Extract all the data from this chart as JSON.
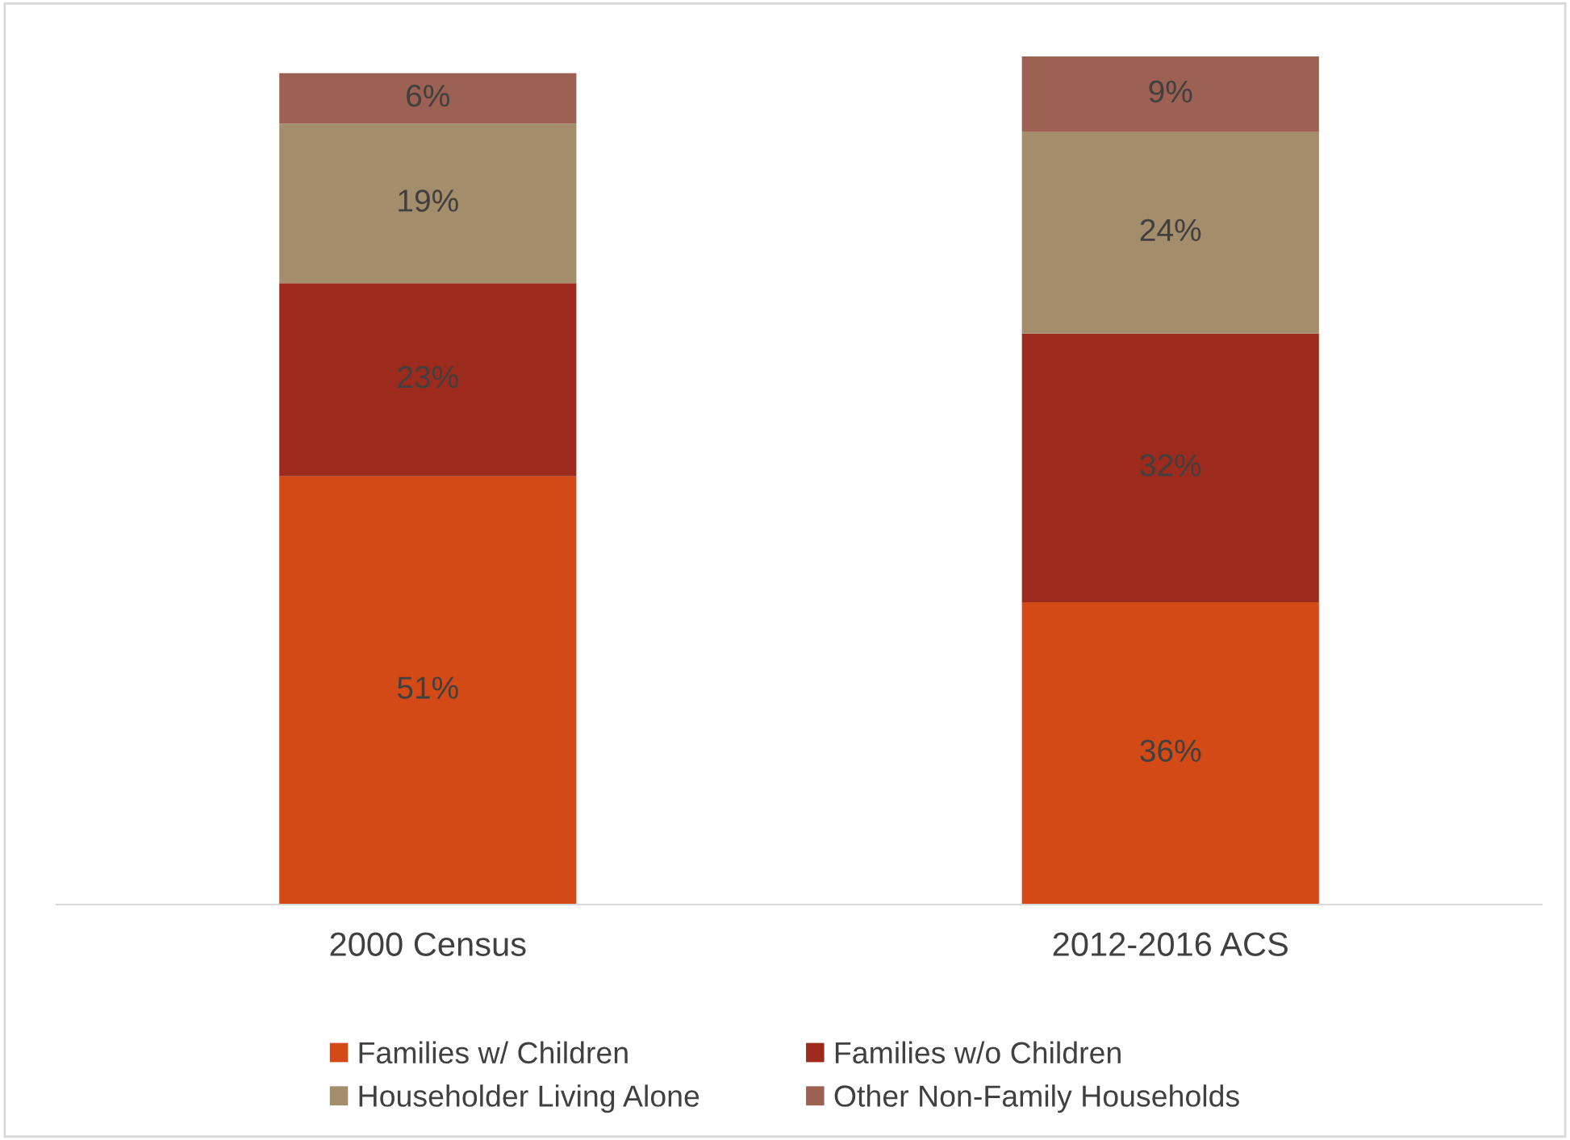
{
  "chart_data": {
    "type": "bar",
    "stacked": true,
    "categories": [
      "2000 Census",
      "2012-2016 ACS"
    ],
    "legend": "bottom",
    "series": [
      {
        "name": "Families w/ Children",
        "color": "#d34a17",
        "values": [
          51,
          36
        ],
        "value_labels": [
          "51%",
          "36%"
        ]
      },
      {
        "name": "Families w/o Children",
        "color": "#9c2b1e",
        "values": [
          23,
          32
        ],
        "value_labels": [
          "23%",
          "32%"
        ]
      },
      {
        "name": "Householder Living Alone",
        "color": "#a38d6b",
        "values": [
          19,
          24
        ],
        "value_labels": [
          "19%",
          "24%"
        ]
      },
      {
        "name": "Other Non-Family Households",
        "color": "#9c6152",
        "values": [
          6,
          9
        ],
        "value_labels": [
          "6%",
          "9%"
        ]
      }
    ]
  }
}
